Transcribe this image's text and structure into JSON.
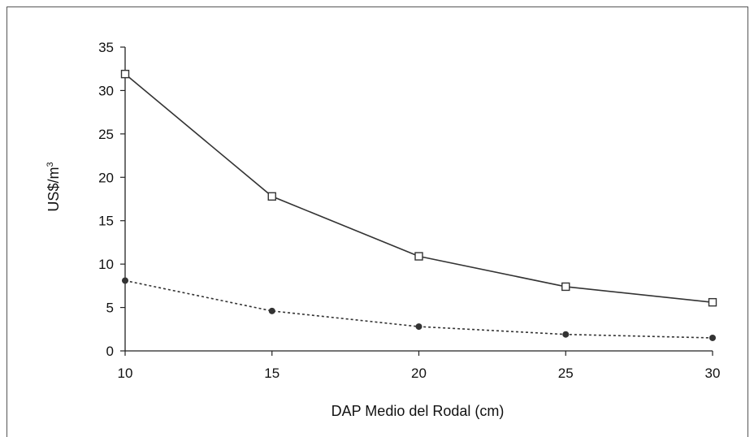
{
  "chart_data": {
    "type": "line",
    "title": "",
    "xlabel": "DAP Medio del Rodal (cm)",
    "ylabel_main": "US$/m",
    "ylabel_sup": "3",
    "x": [
      10,
      15,
      20,
      25,
      30
    ],
    "xlim": [
      10,
      30
    ],
    "ylim": [
      0,
      35
    ],
    "xticks": [
      10,
      15,
      20,
      25,
      30
    ],
    "yticks": [
      0,
      5,
      10,
      15,
      20,
      25,
      30,
      35
    ],
    "grid": false,
    "legend": "none",
    "series": [
      {
        "values": [
          31.9,
          17.8,
          10.9,
          7.4,
          5.6
        ],
        "marker": "open-square",
        "line": "solid",
        "color": "#333333"
      },
      {
        "values": [
          8.1,
          4.6,
          2.8,
          1.9,
          1.5
        ],
        "marker": "filled-circle",
        "line": "dotted",
        "color": "#333333"
      }
    ]
  }
}
